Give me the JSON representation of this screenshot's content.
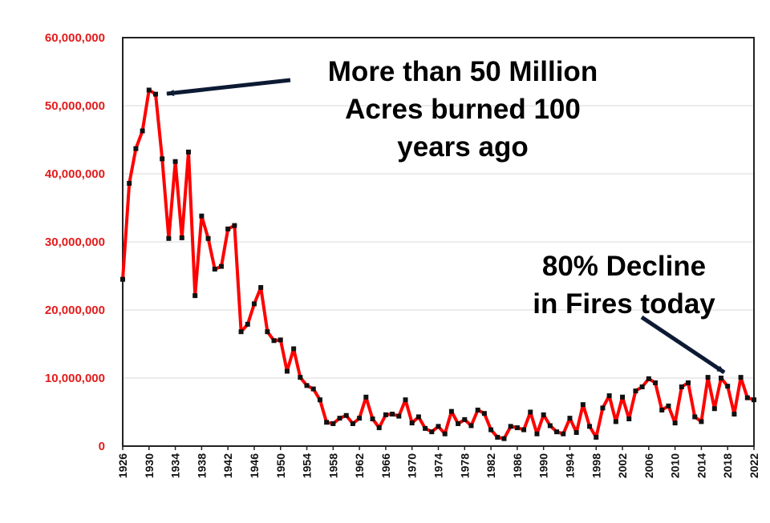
{
  "chart_data": {
    "type": "line",
    "title": "",
    "xlabel": "",
    "ylabel": "",
    "ylim": [
      0,
      60000000
    ],
    "xlim": [
      1926,
      2022
    ],
    "y_ticks": [
      "0",
      "10,000,000",
      "20,000,000",
      "30,000,000",
      "40,000,000",
      "50,000,000",
      "60,000,000"
    ],
    "y_tick_values": [
      0,
      10000000,
      20000000,
      30000000,
      40000000,
      50000000,
      60000000
    ],
    "x_ticks": [
      "1926",
      "1930",
      "1934",
      "1938",
      "1942",
      "1946",
      "1950",
      "1954",
      "1958",
      "1962",
      "1966",
      "1970",
      "1974",
      "1978",
      "1982",
      "1986",
      "1990",
      "1994",
      "1998",
      "2002",
      "2006",
      "2010",
      "2014",
      "2018",
      "2022"
    ],
    "x_tick_values": [
      1926,
      1930,
      1934,
      1938,
      1942,
      1946,
      1950,
      1954,
      1958,
      1962,
      1966,
      1970,
      1974,
      1978,
      1982,
      1986,
      1990,
      1994,
      1998,
      2002,
      2006,
      2010,
      2014,
      2018,
      2022
    ],
    "grid": "horizontal",
    "line_color": "#ff0000",
    "marker_color": "#111111",
    "series": [
      {
        "x": [
          1926,
          1927,
          1928,
          1929,
          1930,
          1931,
          1932,
          1933,
          1934,
          1935,
          1936,
          1937,
          1938,
          1939,
          1940,
          1941,
          1942,
          1943,
          1944,
          1945,
          1946,
          1947,
          1948,
          1949,
          1950,
          1951,
          1952,
          1953,
          1954,
          1955,
          1956,
          1957,
          1958,
          1959,
          1960,
          1961,
          1962,
          1963,
          1964,
          1965,
          1966,
          1967,
          1968,
          1969,
          1970,
          1971,
          1972,
          1973,
          1974,
          1975,
          1976,
          1977,
          1978,
          1979,
          1980,
          1981,
          1982,
          1983,
          1984,
          1985,
          1986,
          1987,
          1988,
          1989,
          1990,
          1991,
          1992,
          1993,
          1994,
          1995,
          1996,
          1997,
          1998,
          1999,
          2000,
          2001,
          2002,
          2003,
          2004,
          2005,
          2006,
          2007,
          2008,
          2009,
          2010,
          2011,
          2012,
          2013,
          2014,
          2015,
          2016,
          2017,
          2018,
          2019,
          2020,
          2021,
          2022
        ],
        "values": [
          24500000,
          38600000,
          43700000,
          46300000,
          52300000,
          51700000,
          42200000,
          30500000,
          41800000,
          30600000,
          43200000,
          22100000,
          33800000,
          30500000,
          26000000,
          26400000,
          31900000,
          32400000,
          16800000,
          17900000,
          20900000,
          23300000,
          16800000,
          15500000,
          15600000,
          11000000,
          14300000,
          10100000,
          8900000,
          8400000,
          6800000,
          3500000,
          3300000,
          4100000,
          4500000,
          3300000,
          4100000,
          7200000,
          4000000,
          2700000,
          4600000,
          4700000,
          4400000,
          6800000,
          3400000,
          4300000,
          2600000,
          2100000,
          2900000,
          1800000,
          5100000,
          3300000,
          3900000,
          3000000,
          5300000,
          4800000,
          2400000,
          1300000,
          1100000,
          2900000,
          2700000,
          2400000,
          5000000,
          1800000,
          4600000,
          3000000,
          2100000,
          1800000,
          4100000,
          2000000,
          6100000,
          2900000,
          1300000,
          5600000,
          7400000,
          3600000,
          7200000,
          4000000,
          8100000,
          8700000,
          9900000,
          9300000,
          5300000,
          5900000,
          3400000,
          8700000,
          9300000,
          4300000,
          3600000,
          10100000,
          5500000,
          10000000,
          8800000,
          4700000,
          10100000,
          7100000,
          6800000
        ]
      }
    ]
  },
  "annotations": {
    "top": [
      "More than 50 Million",
      "Acres burned 100",
      "years ago"
    ],
    "right": [
      "80% Decline",
      "in Fires today"
    ]
  }
}
